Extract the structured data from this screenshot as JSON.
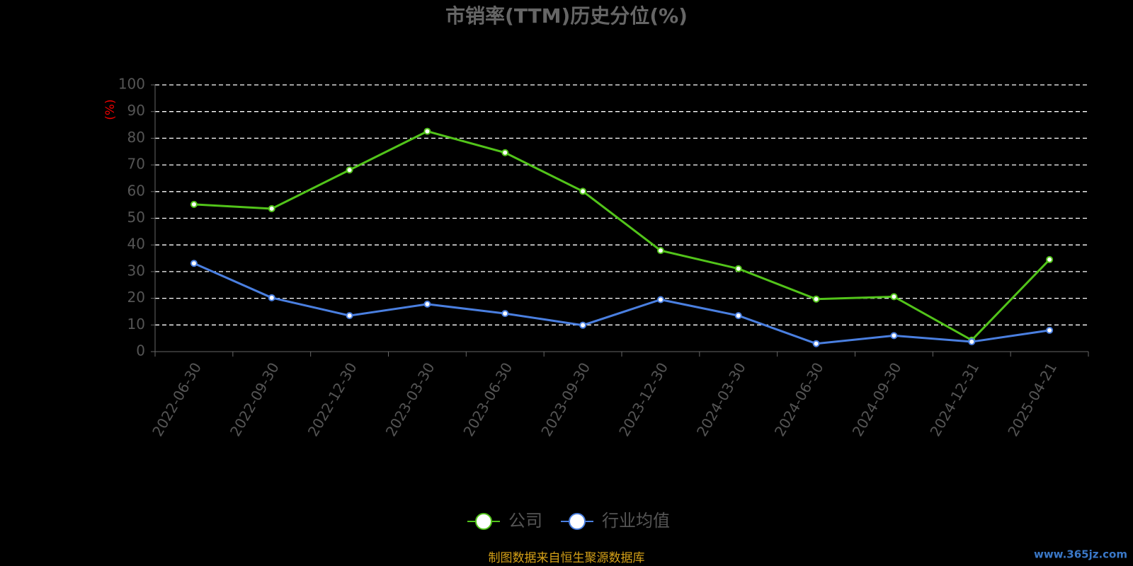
{
  "chart_data": {
    "type": "line",
    "title": "市销率(TTM)历史分位(%)",
    "y_label": "(%)",
    "categories": [
      "2022-06-30",
      "2022-09-30",
      "2022-12-30",
      "2023-03-30",
      "2023-06-30",
      "2023-09-30",
      "2023-12-30",
      "2024-03-30",
      "2024-06-30",
      "2024-09-30",
      "2024-12-31",
      "2025-04-21"
    ],
    "series": [
      {
        "name": "公司",
        "color": "#52c41a",
        "values": [
          55.2,
          53.6,
          68.1,
          82.6,
          74.6,
          60.1,
          37.9,
          31.1,
          19.7,
          20.6,
          4.3,
          34.5
        ]
      },
      {
        "name": "行业均值",
        "color": "#4a7fe0",
        "values": [
          33.1,
          20.2,
          13.5,
          17.8,
          14.3,
          9.9,
          19.5,
          13.5,
          3.0,
          6.0,
          3.7,
          8.0
        ]
      }
    ],
    "ylim": [
      0,
      100
    ],
    "yticks": [
      0,
      10,
      20,
      30,
      40,
      50,
      60,
      70,
      80,
      90,
      100
    ],
    "grid": true,
    "legend": "bottom",
    "source": "制图数据来自恒生聚源数据库",
    "watermark": "www.365jz.com"
  }
}
